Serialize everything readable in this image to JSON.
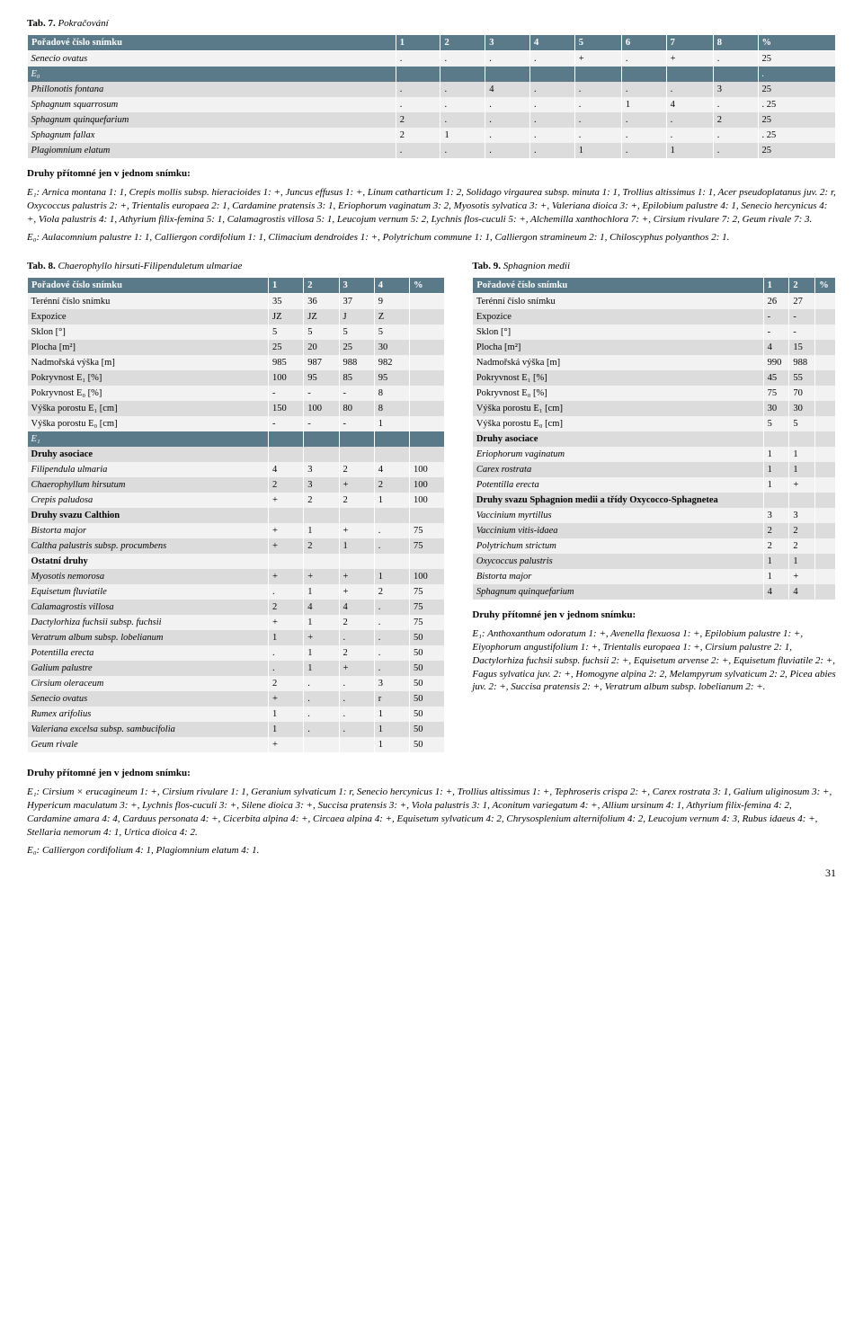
{
  "tab7": {
    "caption_bold": "Tab. 7.",
    "caption_rest": " Pokračování",
    "header": [
      "Pořadové číslo snímku",
      "1",
      "2",
      "3",
      "4",
      "5",
      "6",
      "7",
      "8",
      "%"
    ],
    "rows": [
      {
        "name": "Senecio ovatus",
        "v": [
          ".",
          ".",
          ".",
          ".",
          "+",
          ".",
          "+",
          ".",
          "25"
        ],
        "ital": true
      },
      {
        "name": "E₀",
        "v": [
          "",
          "",
          "",
          "",
          "",
          "",
          "",
          "",
          "."
        ],
        "e": true
      },
      {
        "name": "Phillonotis fontana",
        "v": [
          ".",
          ".",
          "4",
          ".",
          ".",
          ".",
          ".",
          "3",
          "25"
        ],
        "ital": true
      },
      {
        "name": "Sphagnum squarrosum",
        "v": [
          ".",
          ".",
          ".",
          ".",
          ".",
          "1",
          "4",
          ".",
          ". 25"
        ],
        "ital": true
      },
      {
        "name": "Sphagnum quinquefarium",
        "v": [
          "2",
          ".",
          ".",
          ".",
          ".",
          ".",
          ".",
          "2",
          "25"
        ],
        "ital": true
      },
      {
        "name": "Sphagnum fallax",
        "v": [
          "2",
          "1",
          ".",
          ".",
          ".",
          ".",
          ".",
          ".",
          ". 25"
        ],
        "ital": true
      },
      {
        "name": "Plagiomnium elatum",
        "v": [
          ".",
          ".",
          ".",
          ".",
          "1",
          ".",
          "1",
          ".",
          "25"
        ],
        "ital": true
      }
    ]
  },
  "text_block1": {
    "heading": "Druhy přítomné jen v jednom snímku:",
    "body": "E₁: Arnica montana 1: 1, Crepis mollis subsp. hieracioides 1: +, Juncus effusus 1: +, Linum catharticum 1: 2, Solidago virgaurea subsp. minuta 1: 1, Trollius altissimus 1: 1, Acer pseudoplatanus juv. 2: r, Oxycoccus palustris 2: +, Trientalis europaea 2: 1, Cardamine pratensis 3: 1, Eriophorum vaginatum 3: 2, Myosotis sylvatica 3: +, Valeriana dioica 3: +, Epilobium palustre 4: 1, Senecio hercynicus 4: +, Viola palustris 4: 1, Athyrium filix-femina 5: 1, Calamagrostis villosa 5: 1, Leucojum vernum 5: 2, Lychnis flos-cuculi 5: +, Alchemilla xanthochlora 7: +, Cirsium rivulare 7: 2, Geum rivale 7: 3.",
    "body2": "E₀: Aulacomnium palustre 1: 1, Calliergon cordifolium 1: 1, Climacium dendroides 1: +, Polytrichum commune 1: 1, Calliergon stramineum 2: 1, Chiloscyphus polyanthos 2: 1."
  },
  "tab8": {
    "caption_bold": "Tab. 8.",
    "caption_rest": " Chaerophyllo hirsuti-Filipenduletum ulmariae",
    "header": [
      "Pořadové číslo snímku",
      "1",
      "2",
      "3",
      "4",
      "%"
    ],
    "rows": [
      {
        "name": "Terénní číslo snímku",
        "v": [
          "35",
          "36",
          "37",
          "9",
          ""
        ]
      },
      {
        "name": "Expozice",
        "v": [
          "JZ",
          "JZ",
          "J",
          "Z",
          ""
        ]
      },
      {
        "name": "Sklon [°]",
        "v": [
          "5",
          "5",
          "5",
          "5",
          ""
        ]
      },
      {
        "name": "Plocha [m²]",
        "v": [
          "25",
          "20",
          "25",
          "30",
          ""
        ]
      },
      {
        "name": "Nadmořská výška [m]",
        "v": [
          "985",
          "987",
          "988",
          "982",
          ""
        ]
      },
      {
        "name": "Pokryvnost E₁ [%]",
        "v": [
          "100",
          "95",
          "85",
          "95",
          ""
        ]
      },
      {
        "name": "Pokryvnost E₀ [%]",
        "v": [
          "-",
          "-",
          "-",
          "8",
          ""
        ]
      },
      {
        "name": "Výška porostu E₁ [cm]",
        "v": [
          "150",
          "100",
          "80",
          "8",
          ""
        ]
      },
      {
        "name": "Výška porostu E₀ [cm]",
        "v": [
          "-",
          "-",
          "-",
          "1",
          ""
        ]
      },
      {
        "name": "E₁",
        "v": [
          "",
          "",
          "",
          "",
          ""
        ],
        "e": true
      },
      {
        "name": "Druhy asociace",
        "v": [
          "",
          "",
          "",
          "",
          ""
        ],
        "bold": true
      },
      {
        "name": "Filipendula ulmaria",
        "v": [
          "4",
          "3",
          "2",
          "4",
          "100"
        ],
        "ital": true
      },
      {
        "name": "Chaerophyllum hirsutum",
        "v": [
          "2",
          "3",
          "+",
          "2",
          "100"
        ],
        "ital": true
      },
      {
        "name": "Crepis paludosa",
        "v": [
          "+",
          "2",
          "2",
          "1",
          "100"
        ],
        "ital": true
      },
      {
        "name": "Druhy svazu Calthion",
        "v": [
          "",
          "",
          "",
          "",
          ""
        ],
        "bold": true
      },
      {
        "name": "Bistorta major",
        "v": [
          "+",
          "1",
          "+",
          ".",
          "75"
        ],
        "ital": true
      },
      {
        "name": "Caltha palustris subsp. procumbens",
        "v": [
          "+",
          "2",
          "1",
          ".",
          "75"
        ],
        "ital": true
      },
      {
        "name": "Ostatní druhy",
        "v": [
          "",
          "",
          "",
          "",
          ""
        ],
        "bold": true
      },
      {
        "name": "Myosotis nemorosa",
        "v": [
          "+",
          "+",
          "+",
          "1",
          "100"
        ],
        "ital": true
      },
      {
        "name": "Equisetum fluviatile",
        "v": [
          ".",
          "1",
          "+",
          "2",
          "75"
        ],
        "ital": true
      },
      {
        "name": "Calamagrostis villosa",
        "v": [
          "2",
          "4",
          "4",
          ".",
          "75"
        ],
        "ital": true
      },
      {
        "name": "Dactylorhiza fuchsii subsp. fuchsii",
        "v": [
          "+",
          "1",
          "2",
          ".",
          "75"
        ],
        "ital": true
      },
      {
        "name": "Veratrum album subsp. lobelianum",
        "v": [
          "1",
          "+",
          ".",
          ".",
          "50"
        ],
        "ital": true
      },
      {
        "name": "Potentilla erecta",
        "v": [
          ".",
          "1",
          "2",
          ".",
          "50"
        ],
        "ital": true
      },
      {
        "name": "Galium palustre",
        "v": [
          ".",
          "1",
          "+",
          ".",
          "50"
        ],
        "ital": true
      },
      {
        "name": "Cirsium oleraceum",
        "v": [
          "2",
          ".",
          ".",
          "3",
          "50"
        ],
        "ital": true
      },
      {
        "name": "Senecio ovatus",
        "v": [
          "+",
          ".",
          ".",
          "r",
          "50"
        ],
        "ital": true
      },
      {
        "name": "Rumex arifolius",
        "v": [
          "1",
          ".",
          ".",
          "1",
          "50"
        ],
        "ital": true
      },
      {
        "name": "Valeriana excelsa subsp. sambucifolia",
        "v": [
          "1",
          ".",
          ".",
          "1",
          "50"
        ],
        "ital": true
      },
      {
        "name": "Geum rivale",
        "v": [
          "+",
          "",
          "",
          "1",
          "50"
        ],
        "ital": true
      }
    ]
  },
  "tab9": {
    "caption_bold": "Tab. 9.",
    "caption_rest": " Sphagnion medii",
    "header": [
      "Pořadové číslo snímku",
      "1",
      "2",
      "%"
    ],
    "rows": [
      {
        "name": "Terénní číslo snímku",
        "v": [
          "26",
          "27",
          ""
        ]
      },
      {
        "name": "Expozice",
        "v": [
          "-",
          "-",
          ""
        ]
      },
      {
        "name": "Sklon [°]",
        "v": [
          "-",
          "-",
          ""
        ]
      },
      {
        "name": "Plocha [m²]",
        "v": [
          "4",
          "15",
          ""
        ]
      },
      {
        "name": "Nadmořská výška [m]",
        "v": [
          "990",
          "988",
          ""
        ]
      },
      {
        "name": "Pokryvnost E₁ [%]",
        "v": [
          "45",
          "55",
          ""
        ]
      },
      {
        "name": "Pokryvnost E₀ [%]",
        "v": [
          "75",
          "70",
          ""
        ]
      },
      {
        "name": "Výška porostu E₁ [cm]",
        "v": [
          "30",
          "30",
          ""
        ]
      },
      {
        "name": "Výška porostu E₀ [cm]",
        "v": [
          "5",
          "5",
          ""
        ]
      },
      {
        "name": "Druhy asociace",
        "v": [
          "",
          "",
          ""
        ],
        "bold": true
      },
      {
        "name": "Eriophorum vaginatum",
        "v": [
          "1",
          "1",
          ""
        ],
        "ital": true
      },
      {
        "name": "Carex rostrata",
        "v": [
          "1",
          "1",
          ""
        ],
        "ital": true
      },
      {
        "name": "Potentilla erecta",
        "v": [
          "1",
          "+",
          ""
        ],
        "ital": true
      },
      {
        "name": "Druhy svazu Sphagnion medii a třídy Oxycocco-Sphagnetea",
        "v": [
          "",
          "",
          ""
        ],
        "bold": true
      },
      {
        "name": "Vaccinium myrtillus",
        "v": [
          "3",
          "3",
          ""
        ],
        "ital": true
      },
      {
        "name": "Vaccinium vitis-idaea",
        "v": [
          "2",
          "2",
          ""
        ],
        "ital": true
      },
      {
        "name": "Polytrichum strictum",
        "v": [
          "2",
          "2",
          ""
        ],
        "ital": true
      },
      {
        "name": "Oxycoccus palustris",
        "v": [
          "1",
          "1",
          ""
        ],
        "ital": true
      },
      {
        "name": "Bistorta major",
        "v": [
          "1",
          "+",
          ""
        ],
        "ital": true
      },
      {
        "name": "Sphagnum quinquefarium",
        "v": [
          "4",
          "4",
          ""
        ],
        "ital": true
      }
    ]
  },
  "text_block2": {
    "heading": "Druhy přítomné jen v jednom snímku:",
    "body": "E₁: Anthoxanthum odoratum 1: +, Avenella flexuosa 1: +, Epilobium palustre 1: +, Eiyophorum angustifolium 1: +, Trientalis europaea 1: +, Cirsium palustre 2: 1, Dactylorhiza fuchsii subsp. fuchsii 2: +, Equisetum arvense 2: +, Equisetum fluviatile 2: +, Fagus sylvatica juv. 2: +, Homogyne alpina 2: 2, Melampyrum sylvaticum 2: 2, Picea abies juv. 2: +, Succisa pratensis 2: +, Veratrum album subsp. lobelianum 2: +."
  },
  "text_block3": {
    "heading": "Druhy přítomné jen v jednom snímku:",
    "body": "E₁: Cirsium × erucagineum 1: +, Cirsium rivulare 1: 1, Geranium sylvaticum 1: r, Senecio hercynicus 1: +, Trollius altissimus 1: +, Tephroseris crispa 2: +, Carex rostrata 3: 1, Galium uliginosum 3: +, Hypericum maculatum 3: +, Lychnis flos-cuculi 3: +, Silene dioica 3: +, Succisa pratensis 3: +, Viola palustris 3: 1, Aconitum variegatum 4: +, Allium ursinum 4: 1, Athyrium filix-femina 4: 2, Cardamine amara 4: 4, Carduus personata 4: +, Cicerbita alpina 4: +, Circaea alpina 4: +, Equisetum sylvaticum 4: 2, Chrysosplenium alternifolium 4: 2, Leucojum vernum 4: 3, Rubus idaeus 4: +, Stellaria nemorum 4: 1, Urtica dioica 4: 2.",
    "body2": "E₀: Calliergon cordifolium 4: 1, Plagiomnium elatum 4: 1."
  },
  "page_num": "31"
}
